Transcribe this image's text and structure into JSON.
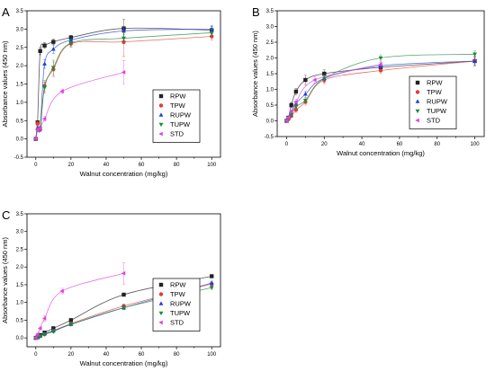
{
  "chart_data": [
    {
      "panel": "A",
      "type": "line",
      "xlabel": "Walnut concentration (mg/kg)",
      "ylabel": "Absorbance values (450 nm)",
      "xlim": [
        -5,
        105
      ],
      "ylim": [
        -0.5,
        3.5
      ],
      "xticks": [
        0,
        20,
        40,
        60,
        80,
        100
      ],
      "yticks": [
        -0.5,
        0.0,
        0.5,
        1.0,
        1.5,
        2.0,
        2.5,
        3.0,
        3.5
      ],
      "legend_position": "right",
      "series": [
        {
          "name": "RPW",
          "color": "#222222",
          "marker": "square",
          "x": [
            0,
            1,
            2.5,
            5,
            10,
            20,
            50,
            100
          ],
          "y": [
            0.0,
            0.45,
            2.4,
            2.55,
            2.65,
            2.77,
            3.02,
            2.97
          ],
          "err": [
            0.02,
            0.05,
            0.1,
            0.08,
            0.08,
            0.06,
            0.25,
            0.1
          ]
        },
        {
          "name": "TPW",
          "color": "#e53935",
          "marker": "circle",
          "x": [
            0,
            1,
            2.5,
            5,
            10,
            20,
            50,
            100
          ],
          "y": [
            0.0,
            0.42,
            0.25,
            1.45,
            1.9,
            2.6,
            2.65,
            2.8
          ],
          "err": [
            0.02,
            0.05,
            0.05,
            0.15,
            0.2,
            0.1,
            0.4,
            0.1
          ]
        },
        {
          "name": "RUPW",
          "color": "#1e40d8",
          "marker": "triangle-up",
          "x": [
            0,
            1,
            2.5,
            5,
            10,
            20,
            50,
            100
          ],
          "y": [
            0.0,
            0.28,
            0.3,
            2.05,
            2.45,
            2.7,
            2.95,
            3.0
          ],
          "err": [
            0.02,
            0.05,
            0.05,
            0.12,
            0.12,
            0.08,
            0.1,
            0.1
          ]
        },
        {
          "name": "TUPW",
          "color": "#1a8a3c",
          "marker": "triangle-down",
          "x": [
            0,
            1,
            2.5,
            5,
            10,
            20,
            50,
            100
          ],
          "y": [
            0.0,
            0.25,
            0.28,
            1.4,
            1.95,
            2.62,
            2.75,
            2.9
          ],
          "err": [
            0.02,
            0.05,
            0.05,
            0.15,
            0.2,
            0.1,
            0.15,
            0.1
          ]
        },
        {
          "name": "STD",
          "color": "#e040e0",
          "marker": "triangle-left",
          "x": [
            0,
            1,
            2.5,
            5,
            15,
            50
          ],
          "y": [
            0.0,
            0.25,
            0.28,
            0.55,
            1.3,
            1.82
          ],
          "err": [
            0.02,
            0.05,
            0.05,
            0.06,
            0.06,
            0.32
          ]
        }
      ]
    },
    {
      "panel": "B",
      "type": "line",
      "xlabel": "Walnut concentration (mg/kg)",
      "ylabel": "Absorbance values (450 nm)",
      "xlim": [
        -5,
        105
      ],
      "ylim": [
        -0.5,
        3.5
      ],
      "xticks": [
        0,
        20,
        40,
        60,
        80,
        100
      ],
      "yticks": [
        -0.5,
        0.0,
        0.5,
        1.0,
        1.5,
        2.0,
        2.5,
        3.0,
        3.5
      ],
      "legend_position": "right",
      "series": [
        {
          "name": "RPW",
          "color": "#222222",
          "marker": "square",
          "x": [
            0,
            1,
            2.5,
            5,
            10,
            20,
            50,
            100
          ],
          "y": [
            0.0,
            0.1,
            0.5,
            0.93,
            1.3,
            1.5,
            1.7,
            1.9
          ],
          "err": [
            0.02,
            0.05,
            0.08,
            0.1,
            0.15,
            0.12,
            0.1,
            0.15
          ]
        },
        {
          "name": "TPW",
          "color": "#e53935",
          "marker": "circle",
          "x": [
            0,
            1,
            2.5,
            5,
            10,
            20,
            50,
            100
          ],
          "y": [
            0.0,
            0.05,
            0.15,
            0.35,
            0.6,
            1.3,
            1.6,
            1.9
          ],
          "err": [
            0.02,
            0.04,
            0.05,
            0.08,
            0.1,
            0.12,
            0.1,
            0.12
          ]
        },
        {
          "name": "RUPW",
          "color": "#1e40d8",
          "marker": "triangle-up",
          "x": [
            0,
            1,
            2.5,
            5,
            10,
            20,
            50,
            100
          ],
          "y": [
            0.0,
            0.1,
            0.25,
            0.55,
            0.85,
            1.35,
            1.75,
            1.9
          ],
          "err": [
            0.02,
            0.04,
            0.06,
            0.08,
            0.1,
            0.12,
            0.1,
            0.12
          ]
        },
        {
          "name": "TUPW",
          "color": "#1a8a3c",
          "marker": "triangle-down",
          "x": [
            0,
            1,
            2.5,
            5,
            10,
            20,
            50,
            100
          ],
          "y": [
            0.0,
            0.08,
            0.2,
            0.45,
            0.65,
            1.35,
            2.0,
            2.12
          ],
          "err": [
            0.02,
            0.04,
            0.05,
            0.08,
            0.1,
            0.12,
            0.1,
            0.1
          ]
        },
        {
          "name": "STD",
          "color": "#e040e0",
          "marker": "triangle-left",
          "x": [
            0,
            1,
            2.5,
            5,
            15,
            50
          ],
          "y": [
            0.0,
            0.1,
            0.3,
            0.6,
            1.3,
            1.8
          ],
          "err": [
            0.02,
            0.04,
            0.05,
            0.08,
            0.1,
            0.1
          ]
        }
      ]
    },
    {
      "panel": "C",
      "type": "line",
      "xlabel": "Walnut concentration (mg/kg)",
      "ylabel": "Absorbance values (450 nm)",
      "xlim": [
        -5,
        105
      ],
      "ylim": [
        -0.25,
        3.5
      ],
      "xticks": [
        0,
        20,
        40,
        60,
        80,
        100
      ],
      "yticks": [
        0.0,
        0.5,
        1.0,
        1.5,
        2.0,
        2.5,
        3.0,
        3.5
      ],
      "legend_position": "right",
      "series": [
        {
          "name": "RPW",
          "color": "#222222",
          "marker": "square",
          "x": [
            0,
            1,
            2.5,
            5,
            10,
            20,
            50,
            100
          ],
          "y": [
            0.0,
            0.02,
            0.08,
            0.15,
            0.27,
            0.5,
            1.22,
            1.74
          ],
          "err": [
            0.01,
            0.02,
            0.03,
            0.04,
            0.05,
            0.05,
            0.04,
            0.04
          ]
        },
        {
          "name": "TPW",
          "color": "#e53935",
          "marker": "circle",
          "x": [
            0,
            1,
            2.5,
            5,
            10,
            20,
            50,
            100
          ],
          "y": [
            0.0,
            0.02,
            0.05,
            0.1,
            0.2,
            0.4,
            0.9,
            1.52
          ],
          "err": [
            0.01,
            0.02,
            0.03,
            0.03,
            0.04,
            0.04,
            0.05,
            0.05
          ]
        },
        {
          "name": "RUPW",
          "color": "#1e40d8",
          "marker": "triangle-up",
          "x": [
            0,
            1,
            2.5,
            5,
            10,
            20,
            50,
            100
          ],
          "y": [
            0.0,
            0.02,
            0.05,
            0.12,
            0.2,
            0.38,
            0.85,
            1.55
          ],
          "err": [
            0.01,
            0.02,
            0.03,
            0.03,
            0.04,
            0.04,
            0.05,
            0.05
          ]
        },
        {
          "name": "TUPW",
          "color": "#1a8a3c",
          "marker": "triangle-down",
          "x": [
            0,
            1,
            2.5,
            5,
            10,
            20,
            50,
            100
          ],
          "y": [
            0.0,
            0.02,
            0.05,
            0.1,
            0.18,
            0.38,
            0.85,
            1.42
          ],
          "err": [
            0.01,
            0.02,
            0.03,
            0.03,
            0.04,
            0.04,
            0.05,
            0.05
          ]
        },
        {
          "name": "STD",
          "color": "#e040e0",
          "marker": "triangle-left",
          "x": [
            0,
            1,
            2.5,
            5,
            15,
            50
          ],
          "y": [
            0.0,
            0.1,
            0.27,
            0.55,
            1.32,
            1.82
          ],
          "err": [
            0.01,
            0.03,
            0.04,
            0.08,
            0.08,
            0.3
          ]
        }
      ]
    }
  ]
}
